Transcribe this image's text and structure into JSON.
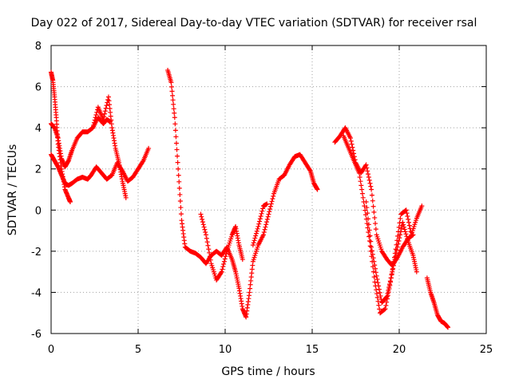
{
  "chart_data": {
    "type": "scatter",
    "title": "Day 022 of 2017, Sidereal Day-to-day VTEC variation (SDTVAR) for receiver rsal",
    "xlabel": "GPS time / hours",
    "ylabel": "SDTVAR / TECUs",
    "xlim": [
      0,
      25
    ],
    "ylim": [
      -6,
      8
    ],
    "x_ticks": [
      "0",
      "5",
      "10",
      "15",
      "20",
      "25"
    ],
    "y_ticks": [
      "-6",
      "-4",
      "-2",
      "0",
      "2",
      "4",
      "6",
      "8"
    ],
    "grid": true,
    "marker": "plus",
    "color": "#ff0000",
    "series": [
      {
        "x": [
          0,
          0.2,
          0.4,
          0.6,
          0.8,
          1.0,
          1.2,
          1.5,
          1.8,
          2.1,
          2.3,
          2.6,
          2.9,
          3.2,
          3.5,
          3.8,
          4.1,
          4.4,
          4.7,
          5.0,
          5.3,
          5.6
        ],
        "y": [
          2.7,
          2.4,
          2.1,
          1.7,
          1.3,
          1.2,
          1.3,
          1.5,
          1.6,
          1.5,
          1.7,
          2.1,
          1.8,
          1.5,
          1.7,
          2.3,
          1.9,
          1.4,
          1.6,
          2.0,
          2.4,
          3.0
        ]
      },
      {
        "x": [
          0,
          0.2,
          0.4,
          0.6,
          0.8,
          1.0,
          1.2,
          1.5,
          1.8,
          2.1,
          2.4,
          2.7,
          3.0,
          3.2,
          3.4
        ],
        "y": [
          4.2,
          4.0,
          3.5,
          2.5,
          2.1,
          2.4,
          2.9,
          3.5,
          3.8,
          3.8,
          4.0,
          4.5,
          4.2,
          4.4,
          4.3
        ]
      },
      {
        "x": [
          0,
          0.1,
          0.2,
          0.3,
          0.4,
          0.6,
          0.8,
          1.0,
          1.1
        ],
        "y": [
          6.7,
          6.3,
          5.5,
          4.5,
          3.2,
          2.0,
          1.0,
          0.6,
          0.4
        ]
      },
      {
        "x": [
          2.4,
          2.7,
          3.0,
          3.3,
          3.5,
          3.7,
          3.9,
          4.1,
          4.3
        ],
        "y": [
          4.0,
          5.0,
          4.4,
          5.5,
          4.0,
          3.0,
          2.3,
          1.4,
          0.6
        ]
      },
      {
        "x": [
          6.7,
          6.9,
          7.1,
          7.3,
          7.5,
          7.7,
          8.0,
          8.3,
          8.6,
          8.9,
          9.2,
          9.5,
          9.8,
          10.1,
          10.4,
          10.6,
          10.8,
          11.0,
          11.2,
          11.4,
          11.6,
          11.9,
          12.2,
          12.5,
          12.8,
          13.1,
          13.4,
          13.7,
          14.0,
          14.3,
          14.6,
          14.9,
          15.1,
          15.3
        ],
        "y": [
          6.8,
          6.2,
          4.5,
          2.0,
          -0.5,
          -1.8,
          -2.0,
          -2.1,
          -2.3,
          -2.6,
          -2.2,
          -2.0,
          -2.2,
          -1.8,
          -2.4,
          -3.0,
          -3.8,
          -4.8,
          -5.2,
          -4.0,
          -2.5,
          -1.7,
          -1.2,
          -0.2,
          0.8,
          1.5,
          1.7,
          2.2,
          2.6,
          2.7,
          2.3,
          1.9,
          1.3,
          1.0
        ]
      },
      {
        "x": [
          8.6,
          8.9,
          9.2,
          9.5,
          9.8,
          10.1,
          10.4,
          10.6,
          10.8,
          11.0
        ],
        "y": [
          -0.2,
          -1.2,
          -2.6,
          -3.4,
          -3.0,
          -2.0,
          -1.2,
          -0.8,
          -1.7,
          -2.4
        ]
      },
      {
        "x": [
          11.6,
          11.9,
          12.2,
          12.4
        ],
        "y": [
          -1.7,
          -0.8,
          0.2,
          0.3
        ]
      },
      {
        "x": [
          16.3,
          16.6,
          16.9,
          17.2,
          17.5,
          17.8,
          18.1,
          18.4,
          18.7,
          19.0,
          19.3,
          19.6,
          19.9,
          20.2,
          20.5,
          20.8
        ],
        "y": [
          3.3,
          3.6,
          4.0,
          3.5,
          2.3,
          1.8,
          2.2,
          1.0,
          -1.2,
          -2.0,
          -2.4,
          -2.7,
          -2.3,
          -1.8,
          -1.4,
          -1.2
        ]
      },
      {
        "x": [
          16.8,
          17.1,
          17.4,
          17.7,
          18.0,
          18.3,
          18.6,
          18.9,
          19.2,
          19.5,
          19.8,
          20.1,
          20.4,
          20.7,
          21.0,
          21.3
        ],
        "y": [
          3.6,
          3.0,
          2.4,
          1.8,
          0.2,
          -1.5,
          -3.5,
          -5.0,
          -4.8,
          -3.5,
          -1.9,
          -0.2,
          0.0,
          -1.2,
          -0.4,
          0.2
        ]
      },
      {
        "x": [
          18.1,
          18.4,
          18.7,
          19.0,
          19.3,
          19.6,
          19.9,
          20.2,
          20.5,
          20.8,
          21.0
        ],
        "y": [
          0.4,
          -1.8,
          -3.2,
          -4.5,
          -4.2,
          -3.0,
          -1.8,
          -0.6,
          -1.5,
          -2.2,
          -3.0
        ]
      },
      {
        "x": [
          21.6,
          21.8,
          22.0,
          22.2,
          22.4,
          22.6,
          22.8
        ],
        "y": [
          -3.3,
          -4.0,
          -4.5,
          -5.1,
          -5.4,
          -5.5,
          -5.7
        ]
      }
    ]
  }
}
